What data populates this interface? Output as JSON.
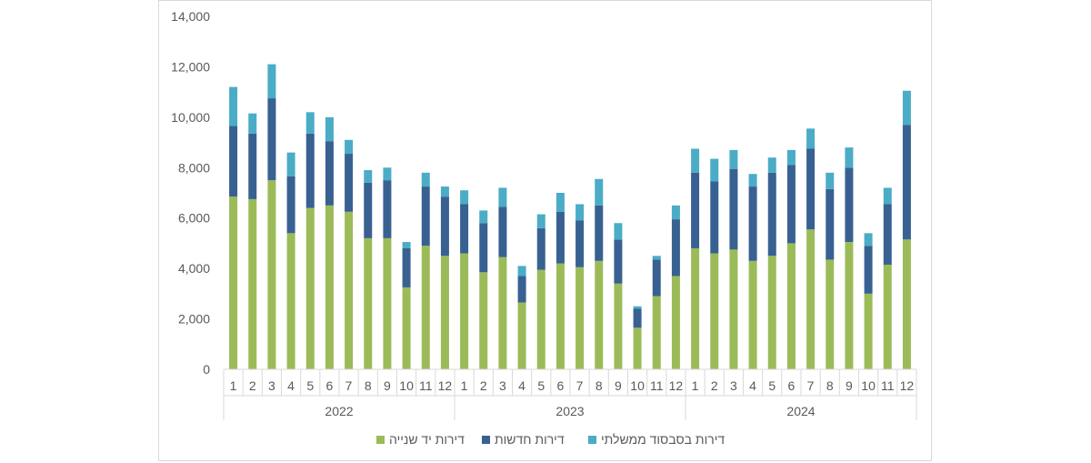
{
  "chart_data": {
    "type": "bar",
    "stacked": true,
    "title": "",
    "xlabel": "",
    "ylabel": "",
    "ylim": [
      0,
      14000
    ],
    "yticks": [
      0,
      2000,
      4000,
      6000,
      8000,
      10000,
      12000,
      14000
    ],
    "ytick_labels": [
      "0",
      "2,000",
      "4,000",
      "6,000",
      "8,000",
      "10,000",
      "12,000",
      "14,000"
    ],
    "grid": false,
    "legend_position": "bottom",
    "groups": [
      {
        "label": "2022",
        "months": [
          "1",
          "2",
          "3",
          "4",
          "5",
          "6",
          "7",
          "8",
          "9",
          "10",
          "11",
          "12"
        ]
      },
      {
        "label": "2023",
        "months": [
          "1",
          "2",
          "3",
          "4",
          "5",
          "6",
          "7",
          "8",
          "9",
          "10",
          "11",
          "12"
        ]
      },
      {
        "label": "2024",
        "months": [
          "1",
          "2",
          "3",
          "4",
          "5",
          "6",
          "7",
          "8",
          "9",
          "10",
          "11",
          "12"
        ]
      }
    ],
    "series": [
      {
        "name": "דירות יד שנייה",
        "color": "#9bbb59",
        "values": [
          6850,
          6750,
          7500,
          5400,
          6400,
          6500,
          6250,
          5200,
          5200,
          3250,
          4900,
          4500,
          4600,
          3850,
          4450,
          2650,
          3950,
          4200,
          4050,
          4300,
          3400,
          1650,
          2900,
          3700,
          4800,
          4600,
          4750,
          4300,
          4500,
          5000,
          5550,
          4350,
          5050,
          3000,
          4150,
          5150
        ]
      },
      {
        "name": "דירות חדשות",
        "color": "#386192",
        "values": [
          2800,
          2600,
          3250,
          2250,
          2950,
          2550,
          2300,
          2200,
          2300,
          1550,
          2350,
          2350,
          1950,
          1950,
          2000,
          1050,
          1650,
          2050,
          1850,
          2200,
          1750,
          750,
          1450,
          2250,
          3000,
          2850,
          3200,
          2950,
          3300,
          3100,
          3200,
          2800,
          2950,
          1900,
          2400,
          4550
        ]
      },
      {
        "name": "דירות בסבסוד ממשלתי",
        "color": "#4bacc6",
        "values": [
          1550,
          800,
          1350,
          950,
          850,
          950,
          550,
          500,
          500,
          250,
          550,
          400,
          550,
          500,
          750,
          400,
          550,
          750,
          650,
          1050,
          650,
          100,
          150,
          550,
          950,
          900,
          750,
          500,
          600,
          600,
          800,
          650,
          800,
          500,
          650,
          1350
        ]
      }
    ]
  }
}
